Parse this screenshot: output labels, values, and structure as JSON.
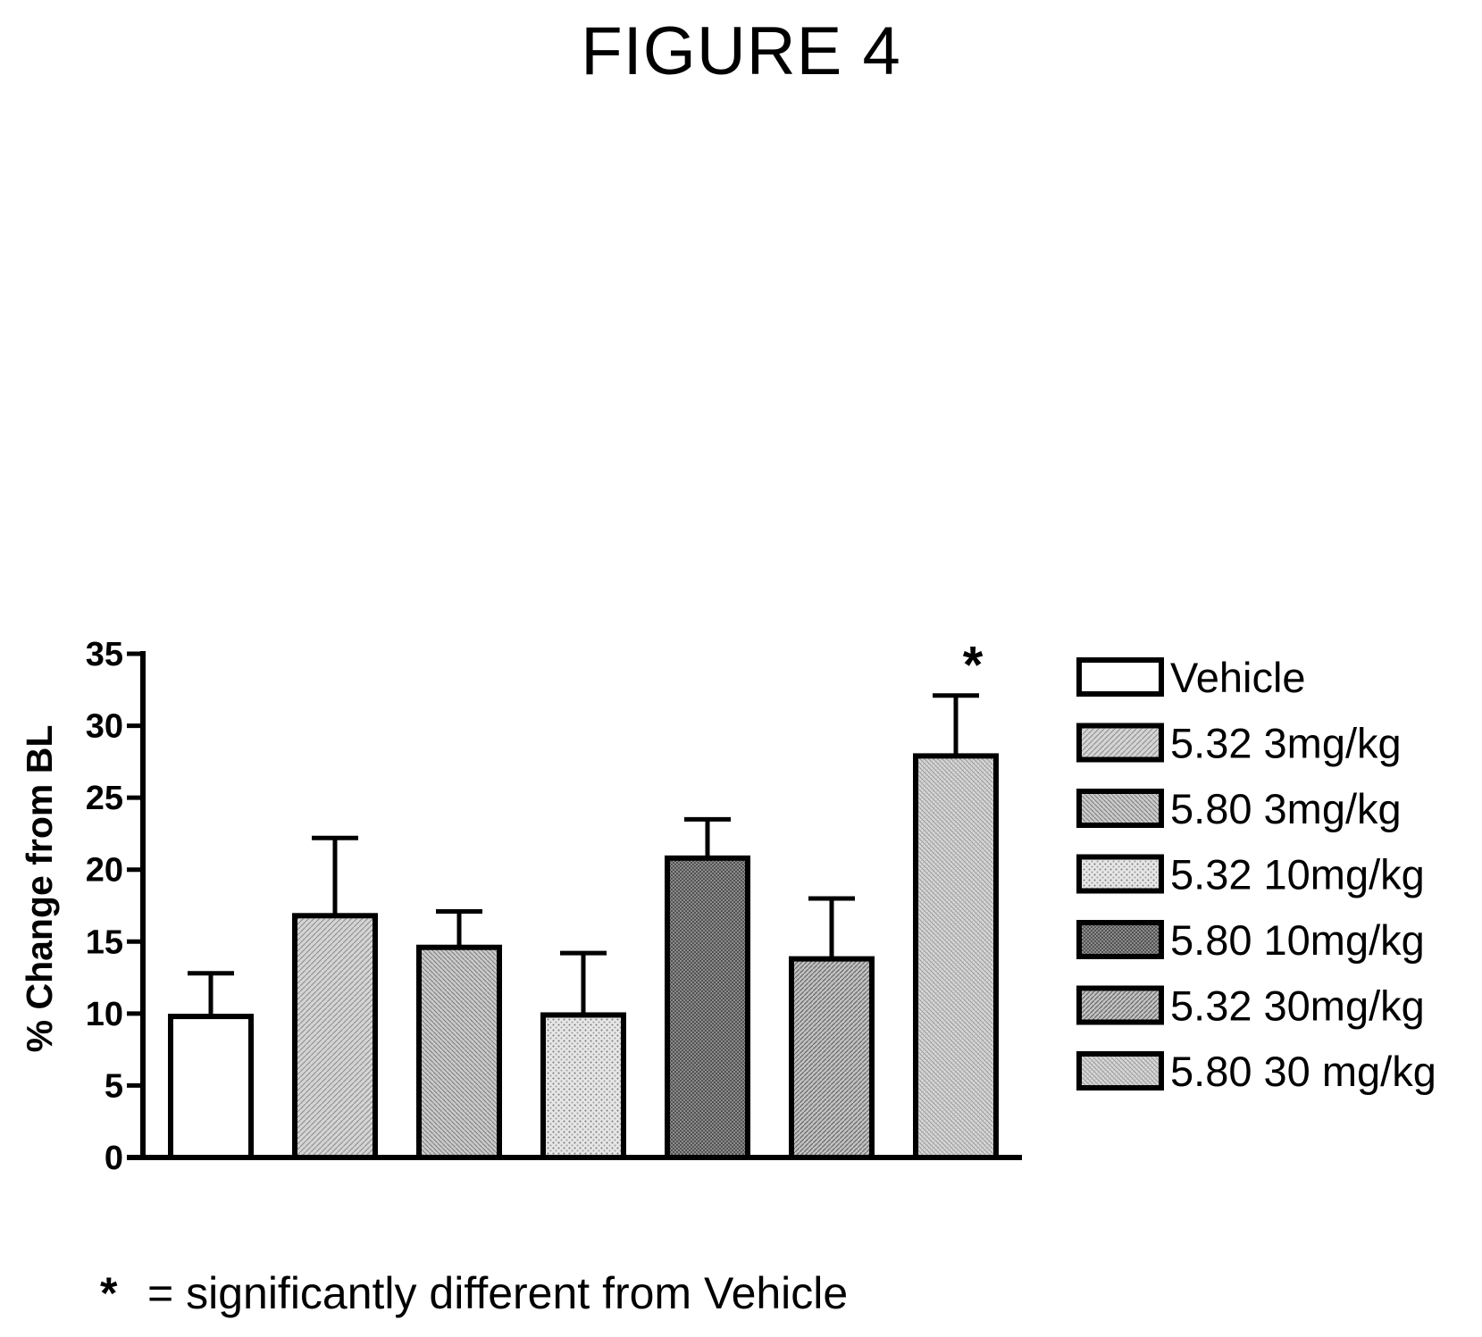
{
  "figure": {
    "title": "FIGURE 4",
    "footnote": "= significantly different from Vehicle",
    "footnote_marker": "*"
  },
  "chart_data": {
    "type": "bar",
    "title": "",
    "xlabel": "",
    "ylabel": "% Change from BL",
    "ylim": [
      0,
      35
    ],
    "yticks": [
      0,
      5,
      10,
      15,
      20,
      25,
      30,
      35
    ],
    "grid": false,
    "legend_position": "right",
    "categories": [
      "Vehicle",
      " 5.32 3mg/kg",
      "5.80 3mg/kg",
      "5.32 10mg/kg",
      "5.80 10mg/kg",
      "5.32 30mg/kg",
      "5.80 30 mg/kg"
    ],
    "values": [
      9.8,
      16.8,
      14.6,
      9.9,
      20.8,
      13.8,
      27.9
    ],
    "error_upper": [
      12.8,
      22.2,
      17.1,
      14.2,
      23.5,
      18.0,
      32.1
    ],
    "significant": [
      false,
      false,
      false,
      false,
      false,
      false,
      true
    ],
    "significance_marker": "*",
    "fills": [
      "#ffffff",
      "#c8c8c8",
      "#bdbdbd",
      "#dedede",
      "#8c8c8c",
      "#b8b8b8",
      "#cfcfcf"
    ]
  }
}
